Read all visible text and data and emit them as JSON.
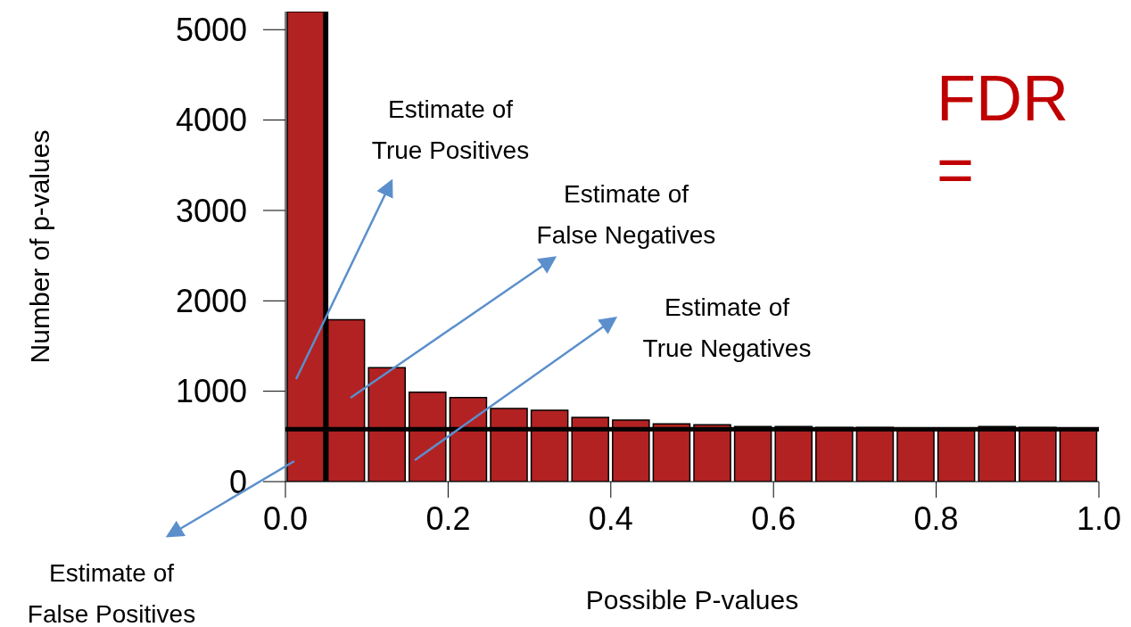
{
  "chart_data": {
    "type": "histogram",
    "xlabel": "Possible P-values",
    "ylabel": "Number of p-values",
    "bins": [
      0,
      0.05,
      0.1,
      0.15,
      0.2,
      0.25,
      0.3,
      0.35,
      0.4,
      0.45,
      0.5,
      0.55,
      0.6,
      0.65,
      0.7,
      0.75,
      0.8,
      0.85,
      0.9,
      0.95,
      1.0
    ],
    "values": [
      5200,
      1790,
      1260,
      990,
      930,
      810,
      790,
      710,
      680,
      640,
      630,
      610,
      610,
      600,
      600,
      590,
      590,
      610,
      600,
      590
    ],
    "color": "#b22222",
    "xlim": [
      0,
      1
    ],
    "xticks": [
      {
        "value": 0,
        "label": "0.0"
      },
      0.2,
      0.4,
      0.6,
      0.8,
      {
        "value": 1,
        "label": "1.0"
      }
    ],
    "ylim": [
      0,
      5200
    ],
    "yticks": [
      0,
      1000,
      2000,
      3000,
      4000,
      5000
    ],
    "ref_lines": [
      {
        "axis": "x",
        "value": 0.05,
        "color": "#000000"
      },
      {
        "axis": "y",
        "value": 580,
        "color": "#000000"
      }
    ],
    "annotations": [
      "Estimate of\nTrue Positives",
      "Estimate of\nFalse Negatives",
      "Estimate of\nTrue Negatives",
      "Estimate of\nFalse Positives",
      "FDR ="
    ],
    "grid": false,
    "legend": false
  }
}
